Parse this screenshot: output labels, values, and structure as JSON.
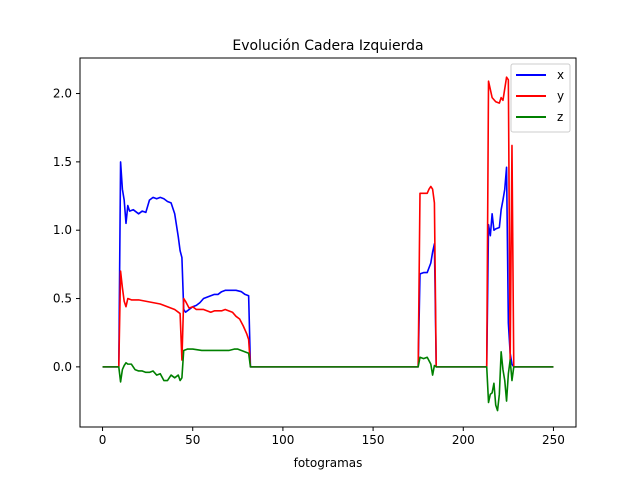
{
  "chart_data": {
    "type": "line",
    "title": "Evolución Cadera Izquierda",
    "xlabel": "fotogramas",
    "ylabel": "",
    "xlim": [
      -12.5,
      262.5
    ],
    "ylim": [
      -0.44,
      2.26
    ],
    "xticks": [
      0,
      50,
      100,
      150,
      200,
      250
    ],
    "yticks": [
      0.0,
      0.5,
      1.0,
      1.5,
      2.0
    ],
    "xtick_labels": [
      "0",
      "50",
      "100",
      "150",
      "200",
      "250"
    ],
    "ytick_labels": [
      "0.0",
      "0.5",
      "1.0",
      "1.5",
      "2.0"
    ],
    "grid": false,
    "legend_position": "top-right",
    "series": [
      {
        "name": "x",
        "color": "#0000ff",
        "points": [
          [
            0,
            0
          ],
          [
            9,
            0
          ],
          [
            10,
            1.5
          ],
          [
            11,
            1.3
          ],
          [
            12,
            1.22
          ],
          [
            13,
            1.05
          ],
          [
            14,
            1.18
          ],
          [
            15,
            1.14
          ],
          [
            17,
            1.15
          ],
          [
            20,
            1.12
          ],
          [
            22,
            1.14
          ],
          [
            24,
            1.13
          ],
          [
            26,
            1.22
          ],
          [
            28,
            1.24
          ],
          [
            30,
            1.23
          ],
          [
            32,
            1.24
          ],
          [
            34,
            1.23
          ],
          [
            36,
            1.21
          ],
          [
            38,
            1.2
          ],
          [
            40,
            1.12
          ],
          [
            42,
            0.95
          ],
          [
            43,
            0.85
          ],
          [
            44,
            0.8
          ],
          [
            45,
            0.42
          ],
          [
            46,
            0.4
          ],
          [
            48,
            0.42
          ],
          [
            50,
            0.44
          ],
          [
            52,
            0.45
          ],
          [
            54,
            0.47
          ],
          [
            56,
            0.5
          ],
          [
            58,
            0.51
          ],
          [
            60,
            0.52
          ],
          [
            62,
            0.53
          ],
          [
            64,
            0.53
          ],
          [
            66,
            0.55
          ],
          [
            68,
            0.56
          ],
          [
            70,
            0.56
          ],
          [
            74,
            0.56
          ],
          [
            77,
            0.55
          ],
          [
            79,
            0.53
          ],
          [
            81,
            0.52
          ],
          [
            82,
            0
          ],
          [
            175,
            0
          ],
          [
            176,
            0.68
          ],
          [
            178,
            0.69
          ],
          [
            180,
            0.69
          ],
          [
            182,
            0.76
          ],
          [
            183,
            0.84
          ],
          [
            184,
            0.9
          ],
          [
            185,
            0
          ],
          [
            213,
            0
          ],
          [
            214,
            1.04
          ],
          [
            215,
            0.96
          ],
          [
            216,
            1.12
          ],
          [
            217,
            1.0
          ],
          [
            218,
            1.01
          ],
          [
            220,
            1.02
          ],
          [
            221,
            1.15
          ],
          [
            222,
            1.22
          ],
          [
            223,
            1.3
          ],
          [
            224,
            1.46
          ],
          [
            225,
            0.32
          ],
          [
            226,
            0.1
          ],
          [
            227,
            0.02
          ],
          [
            228,
            0
          ],
          [
            250,
            0
          ]
        ]
      },
      {
        "name": "y",
        "color": "#ff0000",
        "points": [
          [
            0,
            0
          ],
          [
            9,
            0
          ],
          [
            10,
            0.7
          ],
          [
            11,
            0.58
          ],
          [
            12,
            0.48
          ],
          [
            13,
            0.44
          ],
          [
            14,
            0.5
          ],
          [
            16,
            0.49
          ],
          [
            20,
            0.49
          ],
          [
            24,
            0.48
          ],
          [
            28,
            0.47
          ],
          [
            32,
            0.46
          ],
          [
            36,
            0.44
          ],
          [
            40,
            0.42
          ],
          [
            42,
            0.4
          ],
          [
            43,
            0.39
          ],
          [
            44,
            0.05
          ],
          [
            45,
            0.5
          ],
          [
            46,
            0.48
          ],
          [
            48,
            0.43
          ],
          [
            50,
            0.44
          ],
          [
            52,
            0.42
          ],
          [
            54,
            0.42
          ],
          [
            56,
            0.42
          ],
          [
            58,
            0.41
          ],
          [
            60,
            0.4
          ],
          [
            62,
            0.41
          ],
          [
            64,
            0.41
          ],
          [
            66,
            0.41
          ],
          [
            68,
            0.42
          ],
          [
            70,
            0.41
          ],
          [
            72,
            0.4
          ],
          [
            74,
            0.37
          ],
          [
            76,
            0.35
          ],
          [
            78,
            0.3
          ],
          [
            80,
            0.24
          ],
          [
            81,
            0.2
          ],
          [
            82,
            0
          ],
          [
            175,
            0
          ],
          [
            176,
            1.27
          ],
          [
            178,
            1.27
          ],
          [
            180,
            1.27
          ],
          [
            181,
            1.3
          ],
          [
            182,
            1.32
          ],
          [
            183,
            1.3
          ],
          [
            184,
            1.2
          ],
          [
            185,
            0
          ],
          [
            213,
            0
          ],
          [
            214,
            2.09
          ],
          [
            215,
            2.03
          ],
          [
            216,
            1.97
          ],
          [
            218,
            1.94
          ],
          [
            220,
            1.93
          ],
          [
            221,
            1.97
          ],
          [
            222,
            1.95
          ],
          [
            224,
            2.12
          ],
          [
            225,
            2.1
          ],
          [
            226,
            0.05
          ],
          [
            227,
            1.62
          ],
          [
            228,
            0
          ],
          [
            250,
            0
          ]
        ]
      },
      {
        "name": "z",
        "color": "#008000",
        "points": [
          [
            0,
            0
          ],
          [
            9,
            0
          ],
          [
            10,
            -0.11
          ],
          [
            11,
            -0.02
          ],
          [
            12,
            0.01
          ],
          [
            13,
            0.03
          ],
          [
            14,
            0.02
          ],
          [
            16,
            0.02
          ],
          [
            18,
            -0.02
          ],
          [
            20,
            -0.03
          ],
          [
            22,
            -0.03
          ],
          [
            24,
            -0.04
          ],
          [
            26,
            -0.04
          ],
          [
            28,
            -0.03
          ],
          [
            30,
            -0.06
          ],
          [
            32,
            -0.05
          ],
          [
            34,
            -0.1
          ],
          [
            36,
            -0.1
          ],
          [
            38,
            -0.06
          ],
          [
            40,
            -0.08
          ],
          [
            42,
            -0.06
          ],
          [
            43,
            -0.1
          ],
          [
            44,
            -0.08
          ],
          [
            45,
            0.12
          ],
          [
            47,
            0.13
          ],
          [
            50,
            0.13
          ],
          [
            55,
            0.12
          ],
          [
            60,
            0.12
          ],
          [
            65,
            0.12
          ],
          [
            70,
            0.12
          ],
          [
            73,
            0.13
          ],
          [
            75,
            0.13
          ],
          [
            77,
            0.12
          ],
          [
            79,
            0.11
          ],
          [
            81,
            0.1
          ],
          [
            82,
            0
          ],
          [
            175,
            0
          ],
          [
            176,
            0.07
          ],
          [
            178,
            0.06
          ],
          [
            180,
            0.07
          ],
          [
            182,
            0.02
          ],
          [
            183,
            -0.06
          ],
          [
            184,
            0.01
          ],
          [
            185,
            0
          ],
          [
            213,
            0
          ],
          [
            214,
            -0.26
          ],
          [
            215,
            -0.2
          ],
          [
            216,
            -0.19
          ],
          [
            217,
            -0.12
          ],
          [
            218,
            -0.28
          ],
          [
            219,
            -0.32
          ],
          [
            220,
            -0.2
          ],
          [
            221,
            0.11
          ],
          [
            222,
            -0.02
          ],
          [
            223,
            -0.1
          ],
          [
            224,
            -0.25
          ],
          [
            225,
            -0.05
          ],
          [
            226,
            0.05
          ],
          [
            227,
            -0.1
          ],
          [
            228,
            0
          ],
          [
            250,
            0
          ]
        ]
      }
    ]
  }
}
